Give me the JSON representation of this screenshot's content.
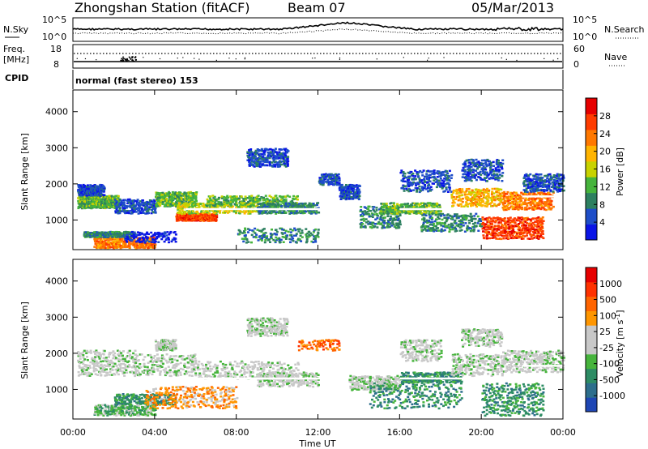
{
  "header": {
    "station": "Zhongshan Station (fitACF)",
    "beam": "Beam 07",
    "date": "05/Mar/2013"
  },
  "panels": {
    "noise": {
      "left_label": "N.Sky",
      "right_label": "N.Search",
      "left_ticks": [
        "10^5",
        "10^0"
      ],
      "right_ticks": [
        "10^5",
        "10^0"
      ]
    },
    "freq": {
      "left_label_line1": "Freq.",
      "left_label_line2": "[MHz]",
      "left_ticks": [
        "18",
        "8"
      ],
      "right_label": "Nave",
      "right_ticks": [
        "60",
        "0"
      ]
    },
    "cpid": {
      "label": "CPID",
      "value": "normal (fast stereo) 153"
    }
  },
  "chart_data": [
    {
      "type": "heatmap",
      "name": "power",
      "ylabel": "Slant Range [km]",
      "yticks": [
        1000,
        2000,
        3000,
        4000
      ],
      "ylim": [
        180,
        4600
      ],
      "xlim": [
        0,
        24
      ],
      "colorbar": {
        "label": "Power [dB]",
        "ticks": [
          "4",
          "8",
          "12",
          "16",
          "20",
          "24",
          "28"
        ],
        "colors": [
          "#0a14e6",
          "#1e4ec8",
          "#2d8060",
          "#46b43c",
          "#c8d200",
          "#ffb400",
          "#ff7800",
          "#ff3c00",
          "#e60000"
        ]
      }
    },
    {
      "type": "heatmap",
      "name": "velocity",
      "ylabel": "Slant Range [km]",
      "yticks": [
        1000,
        2000,
        3000,
        4000
      ],
      "ylim": [
        180,
        4600
      ],
      "xlim": [
        0,
        24
      ],
      "xlabel": "Time UT",
      "xticks": [
        "00:00",
        "04:00",
        "08:00",
        "12:00",
        "16:00",
        "20:00",
        "00:00"
      ],
      "colorbar": {
        "label": "Velocity [m s",
        "label_superscript": "-1",
        "label_close": "]",
        "ticks": [
          "1000",
          "500",
          "100",
          "25",
          "-25",
          "-100",
          "-500",
          "-1000"
        ],
        "colors": [
          "#1e46b4",
          "#2d6e8c",
          "#2d8c64",
          "#46b43c",
          "#c8c8c8",
          "#c8c8c8",
          "#ff9600",
          "#ff6400",
          "#ff3200",
          "#e60000"
        ]
      }
    }
  ],
  "colors": {
    "gray_scatter": "#c4c4bc",
    "green_scatter": "#3c9664",
    "orange_scatter": "#ff8c14"
  }
}
